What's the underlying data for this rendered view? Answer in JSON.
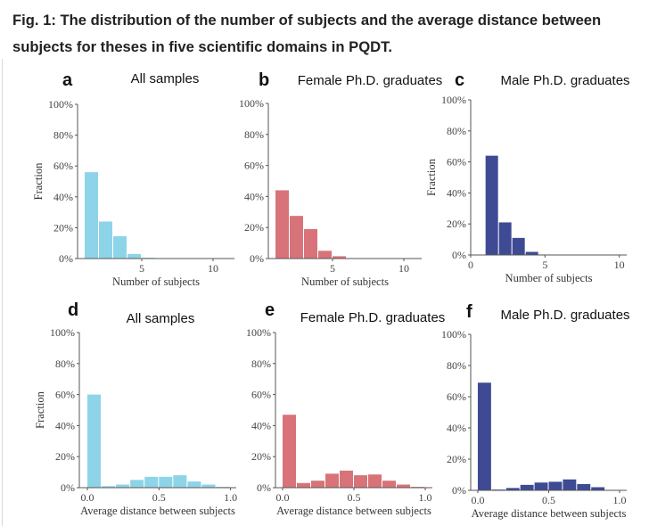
{
  "figure_title": "Fig. 1: The distribution of the number of subjects and the average distance between subjects for theses in five scientific domains in PQDT.",
  "colors": {
    "all": "#8ed4e8",
    "female": "#d8737a",
    "male": "#3e4a94"
  },
  "chart_data": [
    {
      "id": "a",
      "letter": "a",
      "title": "All samples",
      "type": "bar",
      "series": "all",
      "xlabel": "Number of subjects",
      "ylabel": "Fraction",
      "ylim": [
        0,
        100
      ],
      "yticks": [
        "0%",
        "20%",
        "40%",
        "60%",
        "80%",
        "100%"
      ],
      "xticks": [
        {
          "v": 5,
          "label": "5"
        },
        {
          "v": 10,
          "label": "10"
        }
      ],
      "xlim": [
        0.5,
        11.5
      ],
      "bin_start": 1,
      "bin_width": 1,
      "values": [
        56,
        24,
        14.5,
        3,
        0.5
      ]
    },
    {
      "id": "b",
      "letter": "b",
      "title": "Female Ph.D.  graduates",
      "type": "bar",
      "series": "female",
      "xlabel": "Number of subjects",
      "ylabel": "",
      "ylim": [
        0,
        100
      ],
      "yticks": [
        "0%",
        "20%",
        "40%",
        "60%",
        "80%",
        "100%"
      ],
      "xticks": [
        {
          "v": 5,
          "label": "5"
        },
        {
          "v": 10,
          "label": "10"
        }
      ],
      "xlim": [
        0.5,
        11.25
      ],
      "bin_start": 1,
      "bin_width": 1,
      "values": [
        44,
        27.5,
        19,
        5,
        1.5,
        0.3
      ]
    },
    {
      "id": "c",
      "letter": "c",
      "title": "Male Ph.D.  graduates",
      "type": "bar",
      "series": "male",
      "xlabel": "Number of subjects",
      "ylabel": "Fraction",
      "ylim": [
        0,
        100
      ],
      "yticks": [
        "0%",
        "20%",
        "40%",
        "60%",
        "80%",
        "100%"
      ],
      "xticks": [
        {
          "v": 0,
          "label": "0"
        },
        {
          "v": 5,
          "label": "5"
        },
        {
          "v": 10,
          "label": "10"
        }
      ],
      "xlim": [
        0,
        10.5
      ],
      "bin_start": 1,
      "bin_width": 0.9,
      "values": [
        64,
        21,
        11,
        2,
        0.3
      ]
    },
    {
      "id": "d",
      "letter": "d",
      "title": "All samples",
      "type": "bar",
      "series": "all",
      "xlabel": "Average distance between subjects",
      "ylabel": "Fraction",
      "ylim": [
        0,
        100
      ],
      "yticks": [
        "0%",
        "20%",
        "40%",
        "60%",
        "80%",
        "100%"
      ],
      "xticks": [
        {
          "v": 0,
          "label": "0.0"
        },
        {
          "v": 0.5,
          "label": "0.5"
        },
        {
          "v": 1,
          "label": "1.0"
        }
      ],
      "xlim": [
        -0.056,
        1.04
      ],
      "bin_start": 0,
      "bin_width": 0.1,
      "values": [
        60,
        1,
        2,
        5,
        7,
        7,
        8,
        4,
        2,
        0.5
      ]
    },
    {
      "id": "e",
      "letter": "e",
      "title": "Female Ph.D.  graduates",
      "type": "bar",
      "series": "female",
      "xlabel": "Average distance between subjects",
      "ylabel": "",
      "ylim": [
        0,
        100
      ],
      "yticks": [
        "0%",
        "20%",
        "40%",
        "60%",
        "80%",
        "100%"
      ],
      "xticks": [
        {
          "v": 0,
          "label": "0.0"
        },
        {
          "v": 0.5,
          "label": "0.5"
        },
        {
          "v": 1,
          "label": "1.0"
        }
      ],
      "xlim": [
        -0.05,
        1.05
      ],
      "bin_start": 0,
      "bin_width": 0.1,
      "values": [
        47,
        3,
        4.5,
        9,
        11,
        8,
        8.5,
        4.5,
        2,
        0.5
      ]
    },
    {
      "id": "f",
      "letter": "f",
      "title": "Male Ph.D.  graduates",
      "type": "bar",
      "series": "male",
      "xlabel": "Average distance between subjects",
      "ylabel": "",
      "ylim": [
        0,
        100
      ],
      "yticks": [
        "0%",
        "20%",
        "40%",
        "60%",
        "80%",
        "100%"
      ],
      "xticks": [
        {
          "v": 0,
          "label": "0.0"
        },
        {
          "v": 0.5,
          "label": "0.5"
        },
        {
          "v": 1,
          "label": "1.0"
        }
      ],
      "xlim": [
        -0.05,
        1.05
      ],
      "bin_start": 0,
      "bin_width": 0.1,
      "values": [
        69,
        0.5,
        1.5,
        3.5,
        5,
        5.5,
        7,
        4,
        2,
        0.3
      ]
    }
  ]
}
